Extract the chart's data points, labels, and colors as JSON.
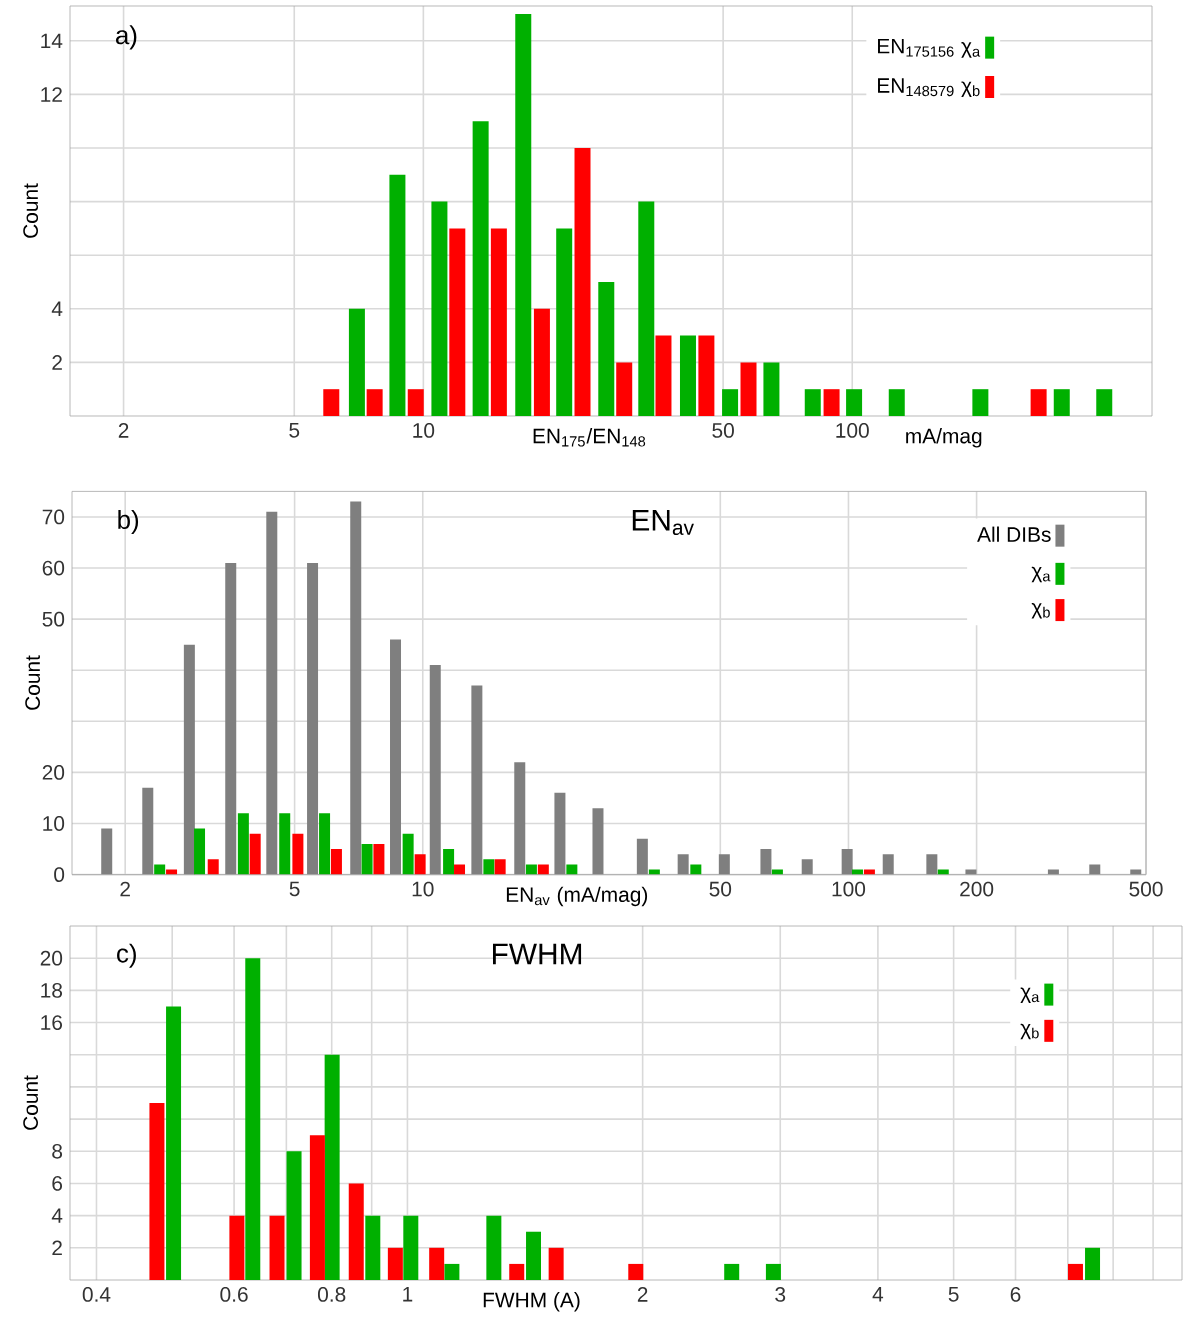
{
  "chart_data": [
    {
      "type": "bar",
      "title": "a)",
      "xlabel": "EN$_{175}$/EN$_{148}$",
      "ylabel": "Count",
      "annotations": [
        "mA/mag"
      ],
      "log": "x",
      "xlim": [
        1.5,
        500
      ],
      "xticks": [
        2,
        5,
        10,
        50,
        100
      ],
      "ylim": [
        0,
        15.3
      ],
      "yticks": [
        2,
        4,
        {
          "value": 6,
          "label": null
        },
        {
          "value": 8,
          "label": null
        },
        {
          "value": 10,
          "label": null
        },
        12,
        14
      ],
      "grid": true,
      "legend": "top right",
      "series": [
        {
          "name": "EN$_{175156}$  χ$_{a}$",
          "color": "#00b000",
          "x": [
            7.0,
            8.7,
            10.9,
            13.6,
            17.1,
            21.3,
            26.7,
            33.1,
            41.4,
            51.9,
            64.8,
            80.9,
            101,
            127,
            199,
            308,
            387
          ],
          "values": [
            4,
            9,
            8,
            11,
            15,
            7,
            5,
            8,
            3,
            1,
            2,
            1,
            1,
            1,
            1,
            1,
            1
          ]
        },
        {
          "name": "EN$_{148579}$  χ$_{b}$",
          "color": "#ff0000",
          "x": [
            6.1,
            7.7,
            9.6,
            12.0,
            15.0,
            18.9,
            23.5,
            29.4,
            36.3,
            45.7,
            57.3,
            89.5,
            272
          ],
          "values": [
            1,
            1,
            1,
            7,
            7,
            4,
            10,
            2,
            3,
            3,
            2,
            1,
            1
          ]
        }
      ]
    },
    {
      "type": "bar",
      "title": "b)",
      "subtitle": "EN$_{av}$",
      "xlabel": "EN$_{av}$ (mA/mag)",
      "ylabel": "Count",
      "log": "x",
      "xlim": [
        1.5,
        500
      ],
      "xticks": [
        2,
        5,
        10,
        50,
        100,
        200,
        500
      ],
      "ylim": [
        0,
        75
      ],
      "yticks": [
        0,
        10,
        20,
        {
          "value": 30,
          "label": null
        },
        {
          "value": 40,
          "label": null
        },
        50,
        60,
        70
      ],
      "grid": true,
      "legend": "top right",
      "series": [
        {
          "name": "All DIBs",
          "color": "#7f7f7f",
          "x": [
            1.81,
            2.26,
            2.83,
            3.54,
            4.42,
            5.51,
            6.96,
            8.63,
            10.7,
            13.4,
            16.9,
            21.0,
            25.8,
            32.8,
            40.9,
            51.1,
            64.0,
            80.0,
            99.3,
            124,
            157,
            194,
            303,
            379,
            473
          ],
          "values": [
            9,
            17,
            45,
            61,
            71,
            61,
            73,
            46,
            41,
            37,
            22,
            16,
            13,
            7,
            4,
            4,
            5,
            3,
            5,
            4,
            4,
            1,
            1,
            2,
            1
          ]
        },
        {
          "name": "χ$_{a}$",
          "color": "#00b000",
          "x": [
            2.41,
            2.99,
            3.79,
            4.74,
            5.88,
            7.4,
            9.24,
            11.5,
            14.3,
            18.0,
            22.4,
            35.0,
            43.8,
            68.1,
            105,
            167
          ],
          "values": [
            2,
            9,
            12,
            12,
            12,
            6,
            8,
            5,
            3,
            2,
            2,
            1,
            2,
            1,
            1,
            1
          ]
        },
        {
          "name": "χ$_{b}$",
          "color": "#ff0000",
          "x": [
            2.57,
            3.22,
            4.04,
            5.09,
            6.27,
            7.89,
            9.86,
            12.2,
            15.2,
            19.2,
            112
          ],
          "values": [
            1,
            3,
            8,
            8,
            5,
            6,
            4,
            2,
            3,
            2,
            1
          ]
        }
      ]
    },
    {
      "type": "bar",
      "title": "c)",
      "subtitle": "FWHM",
      "xlabel": "FWHM  (A)",
      "ylabel": "Count",
      "log": "x",
      "xlim": [
        0.37,
        9.8
      ],
      "xticks": [
        0.4,
        {
          "value": 0.5,
          "label": null
        },
        0.6,
        {
          "value": 0.7,
          "label": null
        },
        0.8,
        {
          "value": 0.9,
          "label": null
        },
        1,
        2,
        3,
        4,
        5,
        6,
        {
          "value": 7,
          "label": null
        },
        {
          "value": 8,
          "label": null
        },
        {
          "value": 9,
          "label": null
        }
      ],
      "ylim": [
        0,
        22
      ],
      "yticks": [
        2,
        4,
        6,
        8,
        {
          "value": 10,
          "label": null
        },
        {
          "value": 12,
          "label": null
        },
        {
          "value": 14,
          "label": null
        },
        16,
        18,
        20
      ],
      "grid": true,
      "legend": "top right",
      "series": [
        {
          "name": "χ$_{a}$",
          "color": "#00b000",
          "x": [
            0.502,
            0.634,
            0.716,
            0.801,
            0.903,
            1.01,
            1.14,
            1.29,
            1.45,
            2.6,
            2.94,
            7.53
          ],
          "values": [
            17,
            20,
            8,
            14,
            4,
            4,
            1,
            4,
            3,
            1,
            1,
            2
          ]
        },
        {
          "name": "χ$_{b}$",
          "color": "#ff0000",
          "x": [
            0.478,
            0.605,
            0.681,
            0.767,
            0.86,
            0.965,
            1.09,
            1.38,
            1.55,
            1.96,
            7.16
          ],
          "values": [
            11,
            4,
            4,
            9,
            6,
            2,
            2,
            1,
            2,
            1,
            1
          ]
        }
      ]
    }
  ]
}
